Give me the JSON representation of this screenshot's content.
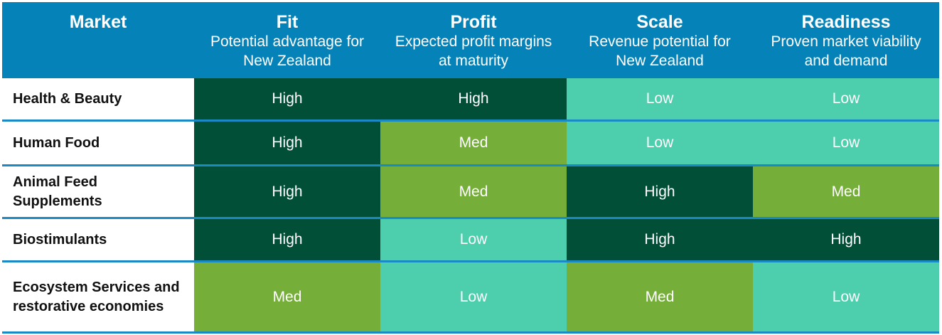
{
  "colors": {
    "header": "#0583b8",
    "high": "#024f37",
    "med": "#76ae3a",
    "low": "#4dcfae",
    "divider": "#1a8ac4"
  },
  "header": {
    "market": "Market",
    "columns": [
      {
        "title": "Fit",
        "subtitle": "Potential advantage for New Zealand"
      },
      {
        "title": "Profit",
        "subtitle": "Expected profit margins at maturity"
      },
      {
        "title": "Scale",
        "subtitle": "Revenue potential for New Zealand"
      },
      {
        "title": "Readiness",
        "subtitle": "Proven market viability and demand"
      }
    ]
  },
  "rows": [
    {
      "market": "Health & Beauty",
      "values": [
        "High",
        "High",
        "Low",
        "Low"
      ]
    },
    {
      "market": "Human Food",
      "values": [
        "High",
        "Med",
        "Low",
        "Low"
      ]
    },
    {
      "market": "Animal Feed Supplements",
      "values": [
        "High",
        "Med",
        "High",
        "Med"
      ]
    },
    {
      "market": "Biostimulants",
      "values": [
        "High",
        "Low",
        "High",
        "High"
      ]
    },
    {
      "market": "Ecosystem Services and restorative economies",
      "values": [
        "Med",
        "Low",
        "Med",
        "Low"
      ]
    }
  ]
}
